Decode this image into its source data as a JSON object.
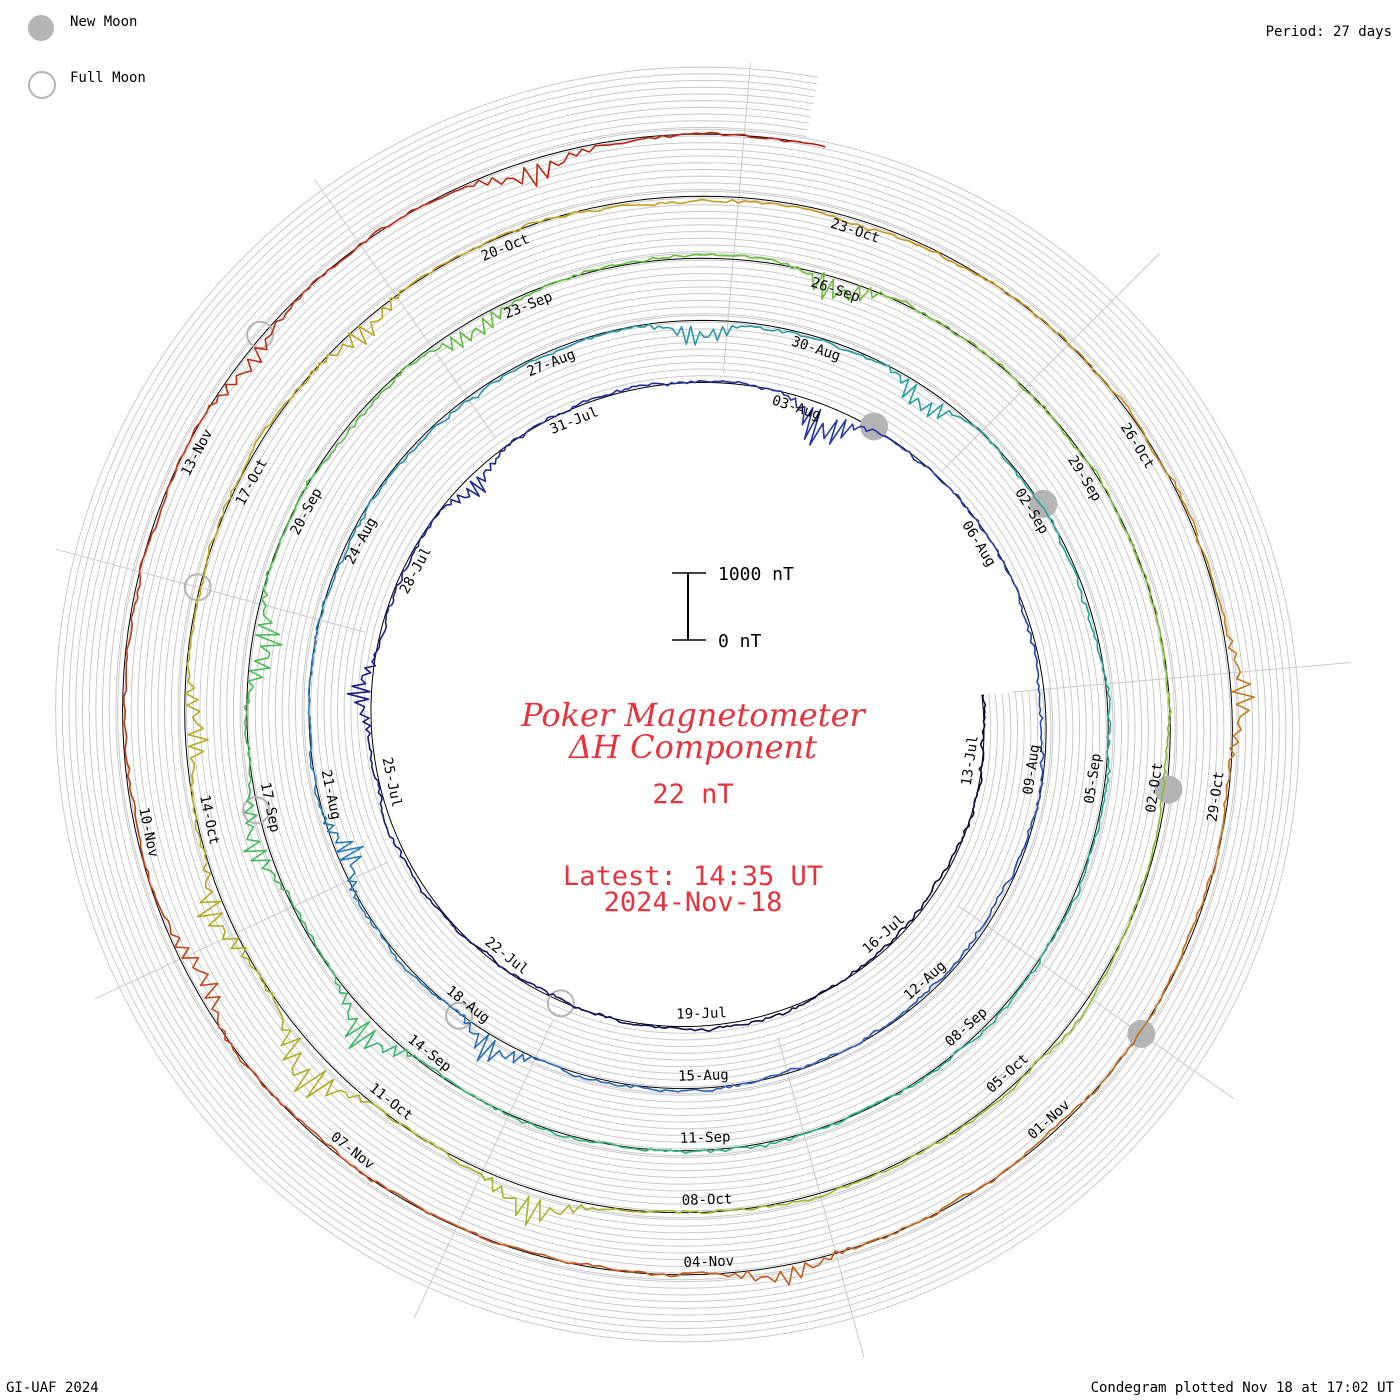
{
  "legend": {
    "new_moon_label": "New Moon",
    "full_moon_label": "Full Moon",
    "new_moon_color": "#b4b4b4",
    "full_moon_color": "#b4b4b4"
  },
  "period_label": "Period: 27 days",
  "footer": {
    "left": "GI-UAF 2024",
    "right": "Condegram plotted Nov 18 at 17:02 UT"
  },
  "title": {
    "line1": "Poker Magnetometer",
    "line2": "ΔH Component",
    "value": "22 nT",
    "latest": "Latest: 14:35 UT",
    "date": "2024-Nov-18"
  },
  "scale_bar": {
    "top_label": "1000 nT",
    "bottom_label": "0 nT"
  },
  "chart_data": {
    "type": "line",
    "title": "Poker Magnetometer ΔH Component",
    "period_days": 27,
    "start_date": "2024-07-12",
    "end_date": "2024-11-18",
    "units": "nT",
    "latest_value_nT": 22,
    "date_labels": [
      {
        "text": "13-Jul",
        "day": 1
      },
      {
        "text": "16-Jul",
        "day": 4
      },
      {
        "text": "19-Jul",
        "day": 7
      },
      {
        "text": "22-Jul",
        "day": 10
      },
      {
        "text": "25-Jul",
        "day": 13
      },
      {
        "text": "28-Jul",
        "day": 16
      },
      {
        "text": "31-Jul",
        "day": 19
      },
      {
        "text": "03-Aug",
        "day": 22
      },
      {
        "text": "06-Aug",
        "day": 25
      },
      {
        "text": "09-Aug",
        "day": 28
      },
      {
        "text": "12-Aug",
        "day": 31
      },
      {
        "text": "15-Aug",
        "day": 34
      },
      {
        "text": "18-Aug",
        "day": 37
      },
      {
        "text": "21-Aug",
        "day": 40
      },
      {
        "text": "24-Aug",
        "day": 43
      },
      {
        "text": "27-Aug",
        "day": 46
      },
      {
        "text": "30-Aug",
        "day": 49
      },
      {
        "text": "02-Sep",
        "day": 52
      },
      {
        "text": "05-Sep",
        "day": 55
      },
      {
        "text": "08-Sep",
        "day": 58
      },
      {
        "text": "11-Sep",
        "day": 61
      },
      {
        "text": "14-Sep",
        "day": 64
      },
      {
        "text": "17-Sep",
        "day": 67
      },
      {
        "text": "20-Sep",
        "day": 70
      },
      {
        "text": "23-Sep",
        "day": 73
      },
      {
        "text": "26-Sep",
        "day": 76
      },
      {
        "text": "29-Sep",
        "day": 79
      },
      {
        "text": "02-Oct",
        "day": 82
      },
      {
        "text": "05-Oct",
        "day": 85
      },
      {
        "text": "08-Oct",
        "day": 88
      },
      {
        "text": "11-Oct",
        "day": 91
      },
      {
        "text": "14-Oct",
        "day": 94
      },
      {
        "text": "17-Oct",
        "day": 97
      },
      {
        "text": "20-Oct",
        "day": 100
      },
      {
        "text": "23-Oct",
        "day": 103
      },
      {
        "text": "26-Oct",
        "day": 106
      },
      {
        "text": "29-Oct",
        "day": 109
      },
      {
        "text": "01-Nov",
        "day": 112
      },
      {
        "text": "04-Nov",
        "day": 115
      },
      {
        "text": "07-Nov",
        "day": 118
      },
      {
        "text": "10-Nov",
        "day": 121
      },
      {
        "text": "13-Nov",
        "day": 124
      }
    ],
    "new_moon_days": [
      23,
      52,
      82,
      111
    ],
    "full_moon_days": [
      9,
      37,
      67,
      96,
      125
    ],
    "disturbances": [
      {
        "day": 22.4,
        "amplitude_nT": -700
      },
      {
        "day": 14.2,
        "amplitude_nT": 350
      },
      {
        "day": 17.4,
        "amplitude_nT": -300
      },
      {
        "day": 36.5,
        "amplitude_nT": 450
      },
      {
        "day": 39.3,
        "amplitude_nT": -450
      },
      {
        "day": 47.7,
        "amplitude_nT": -350
      },
      {
        "day": 50.3,
        "amplitude_nT": -400
      },
      {
        "day": 64.6,
        "amplitude_nT": 550
      },
      {
        "day": 66.7,
        "amplitude_nT": 400
      },
      {
        "day": 68.6,
        "amplitude_nT": -500
      },
      {
        "day": 72.4,
        "amplitude_nT": -350
      },
      {
        "day": 76.0,
        "amplitude_nT": -450
      },
      {
        "day": 89.5,
        "amplitude_nT": 500
      },
      {
        "day": 91.7,
        "amplitude_nT": 700
      },
      {
        "day": 93.2,
        "amplitude_nT": 450
      },
      {
        "day": 94.8,
        "amplitude_nT": -400
      },
      {
        "day": 98.6,
        "amplitude_nT": -350
      },
      {
        "day": 108.2,
        "amplitude_nT": 350
      },
      {
        "day": 114.4,
        "amplitude_nT": 300
      },
      {
        "day": 119.8,
        "amplitude_nT": -350
      },
      {
        "day": 124.8,
        "amplitude_nT": -250
      },
      {
        "day": 127.4,
        "amplitude_nT": -350
      }
    ],
    "series_colors": [
      "#0d0430",
      "#1b1f8a",
      "#2b4fb5",
      "#2a8fb8",
      "#24b18a",
      "#5bbf3c",
      "#9fb82a",
      "#c99c1b",
      "#c2551a",
      "#b81d10"
    ]
  }
}
